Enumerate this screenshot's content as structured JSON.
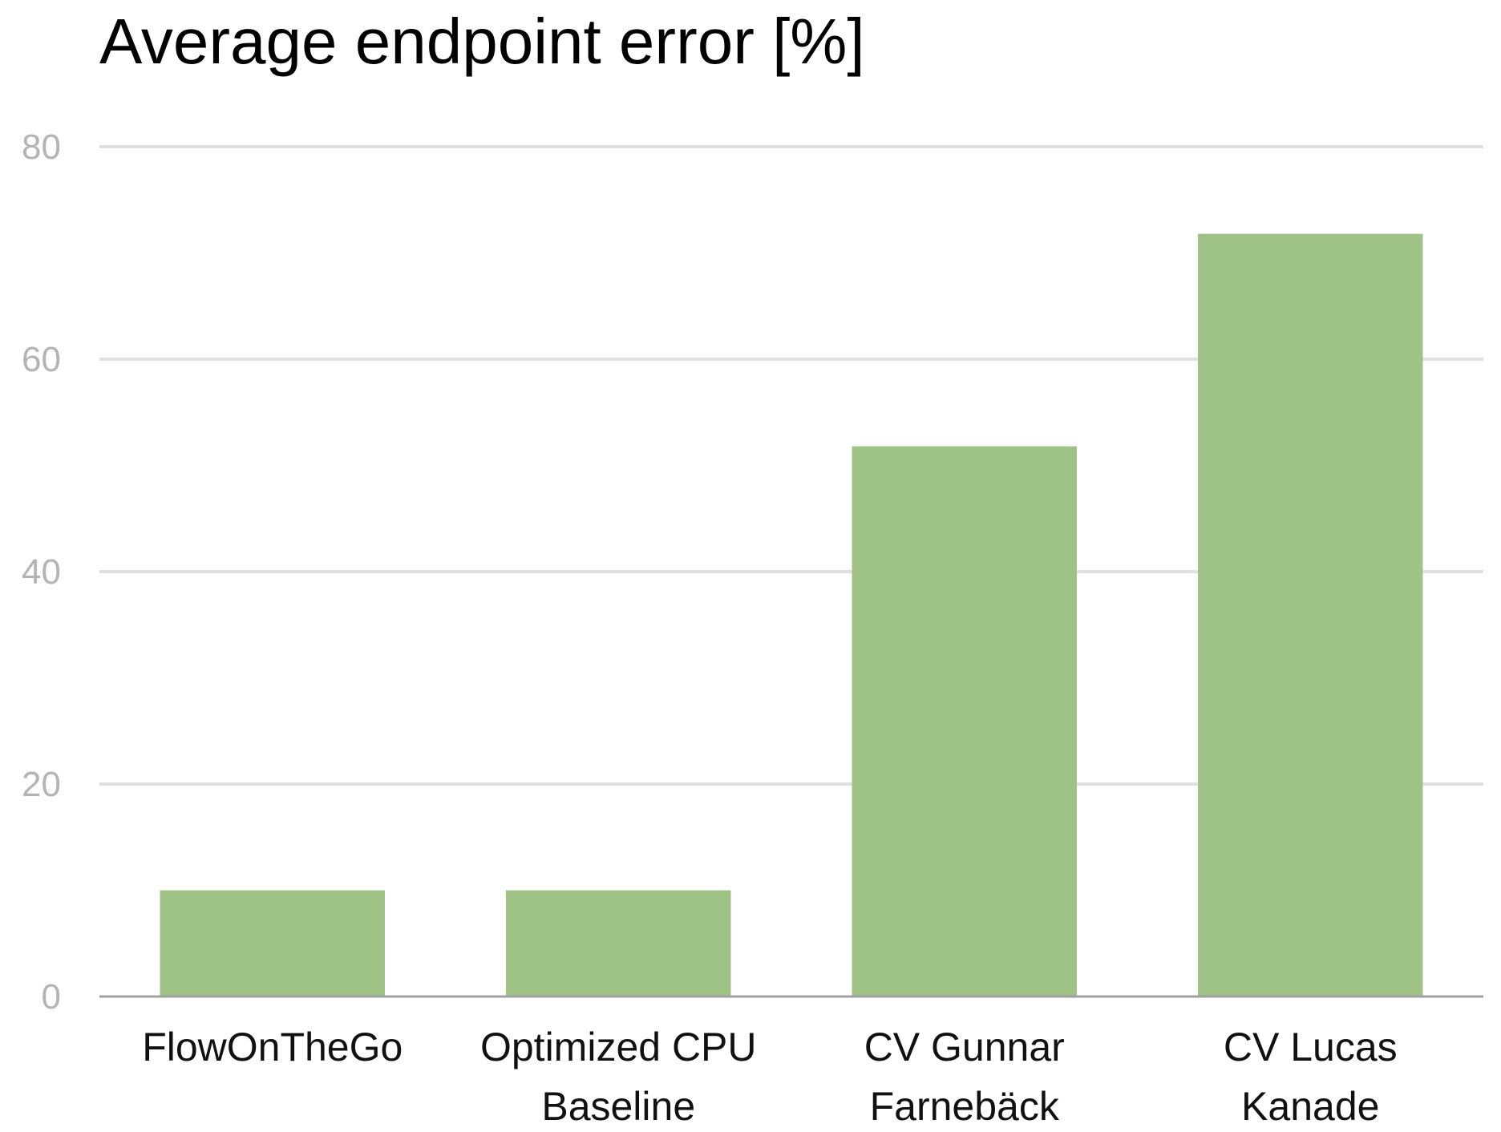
{
  "chart_data": {
    "type": "bar",
    "title": "Average endpoint error [%]",
    "categories": [
      [
        "FlowOnTheGo"
      ],
      [
        "Optimized CPU",
        "Baseline"
      ],
      [
        "CV Gunnar",
        "Farnebäck"
      ],
      [
        "CV Lucas",
        "Kanade"
      ]
    ],
    "values": [
      10,
      10,
      51.8,
      71.8
    ],
    "xlabel": "",
    "ylabel": "",
    "ylim": [
      0,
      80
    ],
    "yticks": [
      "0",
      "20",
      "40",
      "60",
      "80"
    ],
    "grid": true,
    "legend": "none",
    "bar_color": "#9fc286",
    "grid_color": "#e0e0e0",
    "axis_color": "#a0a0a0"
  }
}
